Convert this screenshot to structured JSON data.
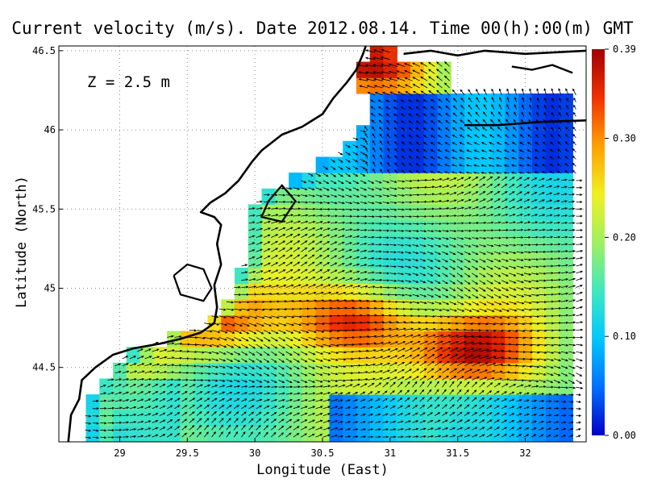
{
  "chart_data": {
    "type": "heatmap",
    "title": "Current velocity (m/s). Date 2012.08.14. Time 00(h):00(m) GMT",
    "annotation": "Z = 2.5 m",
    "xlabel": "Longitude (East)",
    "ylabel": "Latitude (North)",
    "xlim": [
      28.55,
      32.45
    ],
    "ylim": [
      44.03,
      46.53
    ],
    "x_ticks": [
      "29",
      "29.5",
      "30",
      "30.5",
      "31",
      "31.5",
      "32"
    ],
    "x_tick_values": [
      29,
      29.5,
      30,
      30.5,
      31,
      31.5,
      32
    ],
    "y_ticks": [
      "44.5",
      "45",
      "45.5",
      "46",
      "46.5"
    ],
    "y_tick_values": [
      44.5,
      45,
      45.5,
      46,
      46.5
    ],
    "grid": true,
    "colorbar": {
      "min": 0.0,
      "max": 0.39,
      "tick_labels": [
        "0.00",
        "0.10",
        "0.20",
        "0.30",
        "0.39"
      ],
      "tick_values": [
        0.0,
        0.1,
        0.2,
        0.3,
        0.39
      ],
      "colors": [
        "#0000c8",
        "#0070ff",
        "#00c8ff",
        "#40e8c0",
        "#a0f060",
        "#f0f020",
        "#ffa000",
        "#f03000",
        "#a00000"
      ]
    },
    "velocity_maxima": [
      {
        "lon": 30.75,
        "lat": 44.8,
        "value": 0.36
      },
      {
        "lon": 31.6,
        "lat": 44.6,
        "value": 0.37
      },
      {
        "lon": 30.85,
        "lat": 46.4,
        "value": 0.37
      },
      {
        "lon": 29.7,
        "lat": 44.8,
        "value": 0.34
      }
    ],
    "grid_spacing_deg": 0.1,
    "colors": {
      "land_line": "#000000",
      "sea_background": "#ffffff",
      "vector": "#000000"
    }
  }
}
